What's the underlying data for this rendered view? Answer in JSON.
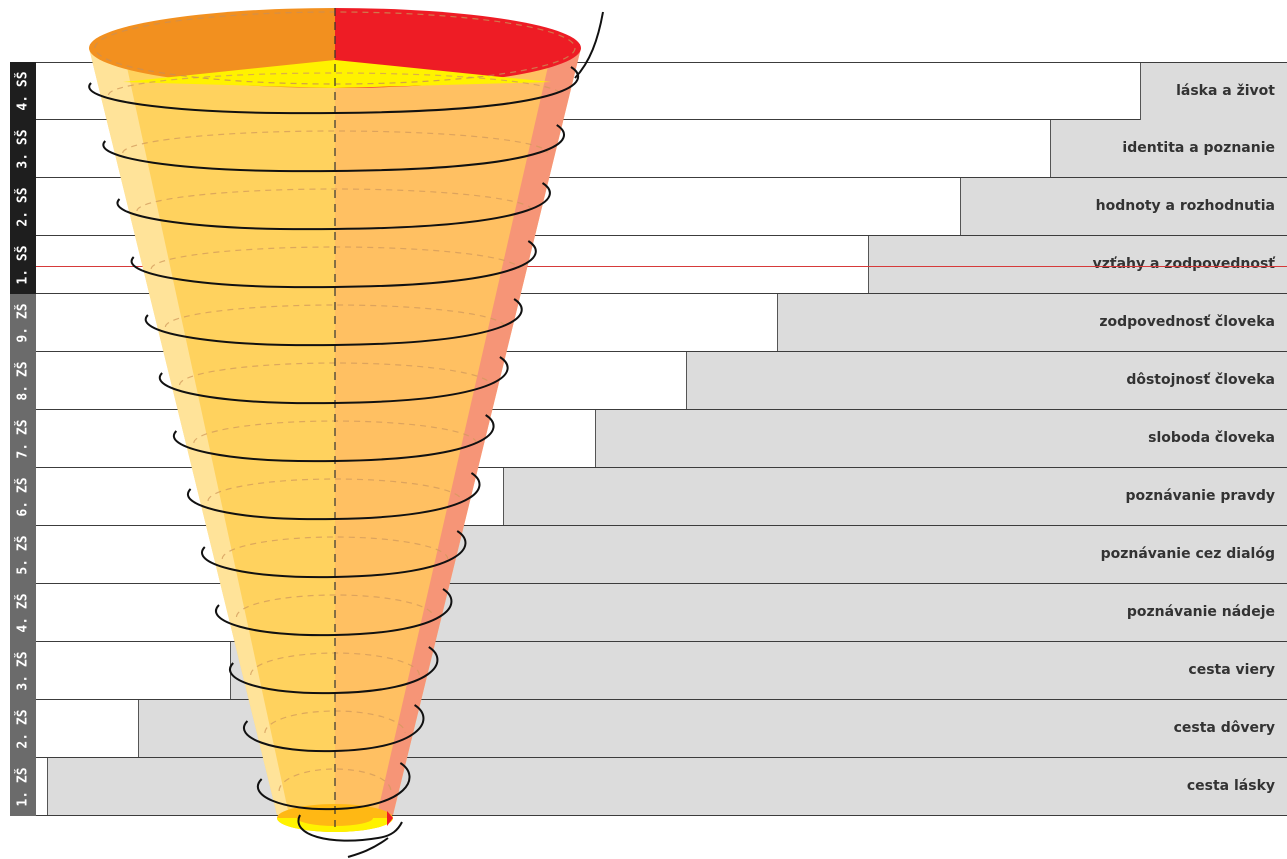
{
  "levels": [
    {
      "grade": "4. SŠ",
      "topic": "láska a život"
    },
    {
      "grade": "3. SŠ",
      "topic": "identita a poznanie"
    },
    {
      "grade": "2. SŠ",
      "topic": "hodnoty a rozhodnutia"
    },
    {
      "grade": "1. SŠ",
      "topic": "vzťahy a zodpovednosť"
    },
    {
      "grade": "9. ZŠ",
      "topic": "zodpovednosť človeka"
    },
    {
      "grade": "8. ZŠ",
      "topic": "dôstojnosť človeka"
    },
    {
      "grade": "7. ZŠ",
      "topic": "sloboda človeka"
    },
    {
      "grade": "6. ZŠ",
      "topic": "poznávanie pravdy"
    },
    {
      "grade": "5. ZŠ",
      "topic": "poznávanie cez dialóg"
    },
    {
      "grade": "4. ZŠ",
      "topic": "poznávanie nádeje"
    },
    {
      "grade": "3. ZŠ",
      "topic": "cesta viery"
    },
    {
      "grade": "2. ZŠ",
      "topic": "cesta dôvery"
    },
    {
      "grade": "1. ZŠ",
      "topic": "cesta lásky"
    }
  ],
  "colors": {
    "secondary_school_tab": "#1e1e1e",
    "primary_school_tab": "#6b6b6b",
    "step_fill": "#dcdcdc",
    "funnel_left": "#ffd25e",
    "funnel_right": "#ffc062",
    "funnel_top_orange": "#f2901f",
    "funnel_top_red": "#ee1c25",
    "funnel_yellow": "#fff200",
    "spiral": "#111111",
    "school_divider": "#d63a3a"
  }
}
